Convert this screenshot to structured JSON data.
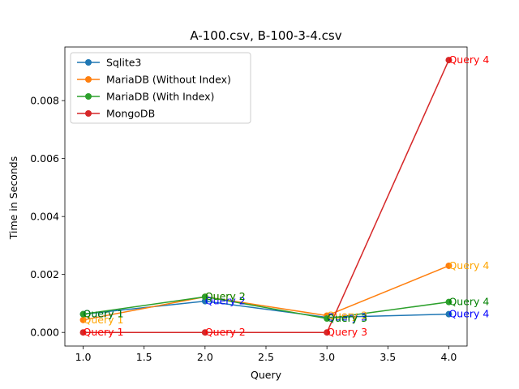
{
  "chart_data": {
    "type": "line",
    "title": "A-100.csv, B-100-3-4.csv",
    "xlabel": "Query",
    "ylabel": "Time in Seconds",
    "xlim": [
      0.85,
      4.15
    ],
    "ylim": [
      -0.00047,
      0.00985
    ],
    "xticks": [
      1.0,
      1.5,
      2.0,
      2.5,
      3.0,
      3.5,
      4.0
    ],
    "xtick_labels": [
      "1.0",
      "1.5",
      "2.0",
      "2.5",
      "3.0",
      "3.5",
      "4.0"
    ],
    "yticks": [
      0,
      0.002,
      0.004,
      0.006,
      0.008
    ],
    "ytick_labels": [
      "0.000",
      "0.002",
      "0.004",
      "0.006",
      "0.008"
    ],
    "grid": false,
    "legend_position": "top-left",
    "series": [
      {
        "name": "Sqlite3",
        "color": "#1f77b4",
        "annotation_color": "#0000ff",
        "x": [
          1,
          2,
          3,
          4
        ],
        "y": [
          0.00063,
          0.00108,
          0.00052,
          0.00063
        ],
        "annotations": [
          "Query 1",
          "Query 2",
          "Query 3",
          "Query 4"
        ]
      },
      {
        "name": "MariaDB (Without Index)",
        "color": "#ff7f0e",
        "annotation_color": "#ffa500",
        "x": [
          1,
          2,
          3,
          4
        ],
        "y": [
          0.00043,
          0.00123,
          0.00058,
          0.0023
        ],
        "annotations": [
          "Query 1",
          "Query 2",
          "Query 3",
          "Query 4"
        ]
      },
      {
        "name": "MariaDB (With Index)",
        "color": "#2ca02c",
        "annotation_color": "#008000",
        "x": [
          1,
          2,
          3,
          4
        ],
        "y": [
          0.00063,
          0.00123,
          0.00048,
          0.00105
        ],
        "annotations": [
          "Query 1",
          "Query 2",
          "Query 3",
          "Query 4"
        ]
      },
      {
        "name": "MongoDB",
        "color": "#d62728",
        "annotation_color": "#ff0000",
        "x": [
          1,
          2,
          3,
          4
        ],
        "y": [
          0.0,
          0.0,
          0.0,
          0.0094
        ],
        "annotations": [
          "Query 1",
          "Query 2",
          "Query 3",
          "Query 4"
        ]
      }
    ]
  }
}
